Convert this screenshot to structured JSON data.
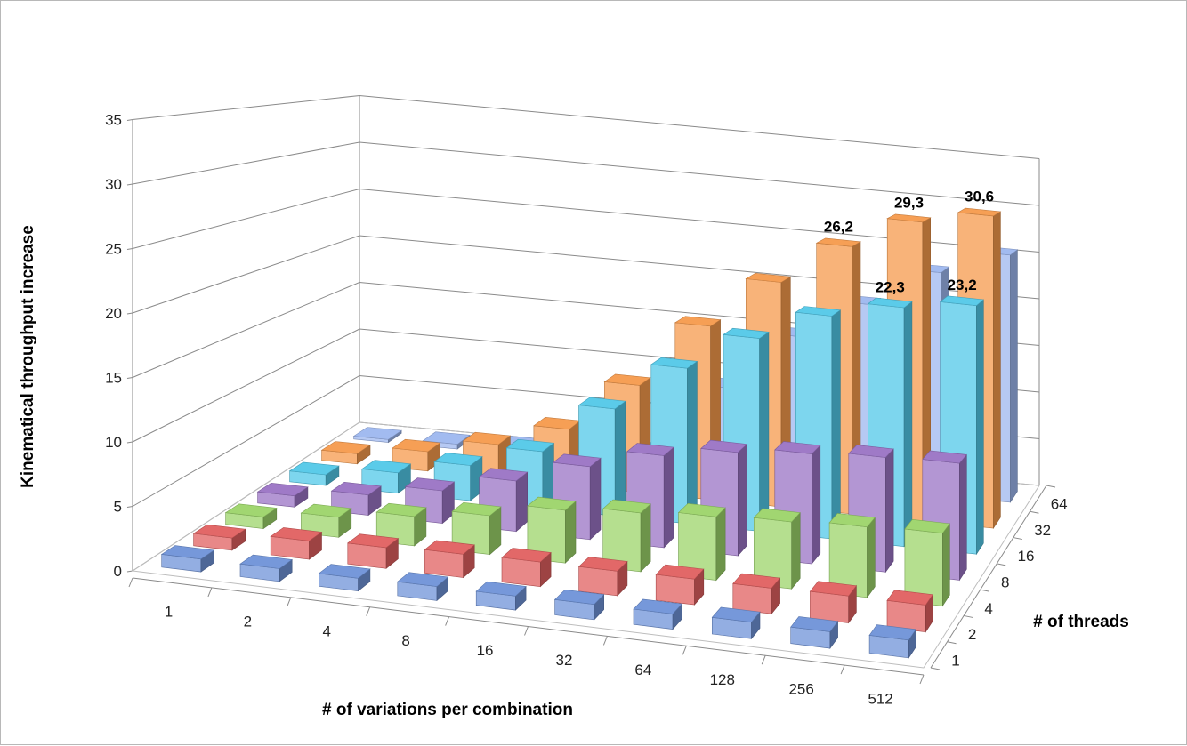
{
  "chart_data": {
    "type": "bar",
    "subtype": "3d-column",
    "title": "",
    "xlabel": "# of variations per combination",
    "ylabel": "Kinematical throughput increase",
    "zlabel": "# of threads",
    "ylim": [
      0,
      35
    ],
    "yticks": [
      "0",
      "5",
      "10",
      "15",
      "20",
      "25",
      "30",
      "35"
    ],
    "grid": true,
    "legend": "none",
    "categories": [
      "1",
      "2",
      "4",
      "8",
      "16",
      "32",
      "64",
      "128",
      "256",
      "512"
    ],
    "series": [
      {
        "name": "1",
        "color": "#6f93d8",
        "values": [
          1,
          1,
          1,
          1.1,
          1.1,
          1.2,
          1.2,
          1.3,
          1.3,
          1.4
        ]
      },
      {
        "name": "2",
        "color": "#e06060",
        "values": [
          1,
          1.5,
          1.7,
          1.9,
          2,
          2,
          2.1,
          2.1,
          2.2,
          2.2
        ]
      },
      {
        "name": "4",
        "color": "#9cd46a",
        "values": [
          1,
          1.7,
          2.5,
          3.3,
          4.5,
          5,
          5.4,
          5.7,
          6,
          6.2
        ]
      },
      {
        "name": "8",
        "color": "#9a73c4",
        "values": [
          1,
          1.8,
          2.9,
          4.5,
          6.5,
          8.2,
          9.2,
          9.8,
          10.2,
          10.4
        ]
      },
      {
        "name": "16",
        "color": "#52c8e8",
        "values": [
          1,
          1.9,
          3.3,
          5.3,
          10,
          14.5,
          18,
          20.8,
          22.3,
          23.2
        ]
      },
      {
        "name": "32",
        "color": "#f59a4c",
        "values": [
          1,
          1.9,
          3.3,
          5.5,
          10.5,
          17,
          22,
          26.2,
          29.3,
          30.6
        ]
      },
      {
        "name": "64",
        "color": "#9db7ef",
        "values": [
          0.3,
          0.5,
          0.8,
          1,
          1.5,
          9,
          15,
          19,
          23,
          25.5
        ]
      }
    ],
    "data_labels": [
      {
        "series": "32",
        "category": "128",
        "text": "26,2"
      },
      {
        "series": "32",
        "category": "256",
        "text": "29,3"
      },
      {
        "series": "32",
        "category": "512",
        "text": "30,6"
      },
      {
        "series": "16",
        "category": "256",
        "text": "22,3"
      },
      {
        "series": "16",
        "category": "512",
        "text": "23,2"
      }
    ]
  }
}
